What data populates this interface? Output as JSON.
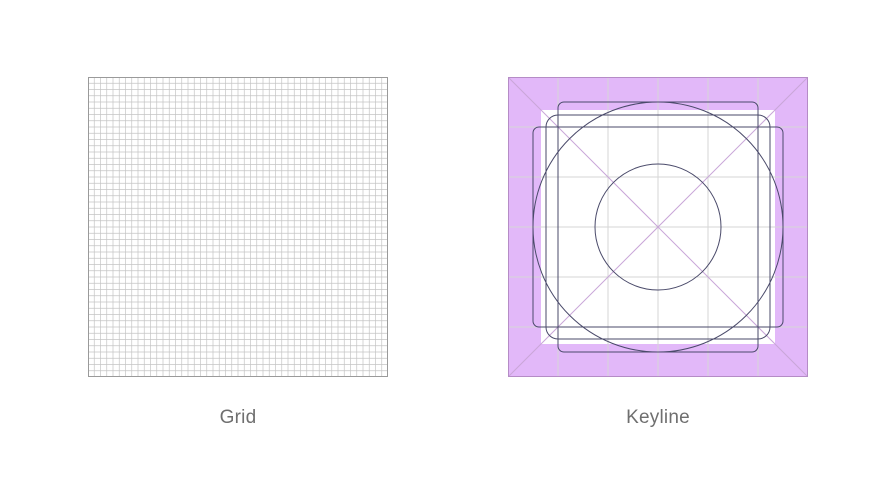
{
  "grid_panel": {
    "caption": "Grid"
  },
  "keyline_panel": {
    "caption": "Keyline"
  },
  "colors": {
    "background": "#ffffff",
    "grid_line": "#c4c4c4",
    "panel_border": "#9a9a9a",
    "padding_fill": "#e2b8f9",
    "padding_line": "#c99ad8",
    "keyline_stroke": "#4a4a6a",
    "caption_text": "#6f6f6f"
  }
}
